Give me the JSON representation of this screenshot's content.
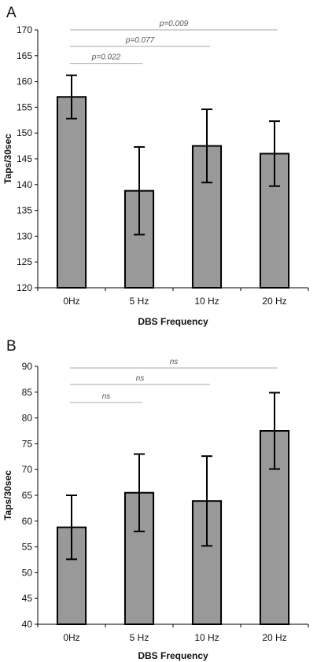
{
  "figure": {
    "background": "#ffffff",
    "bar_color": "#999999",
    "edge_color": "#000000",
    "bracket_color": "#aaaaaa"
  },
  "chart_data": [
    {
      "type": "bar",
      "panel": "A",
      "title": "",
      "xlabel": "DBS Frequency",
      "ylabel": "Taps/30sec",
      "categories": [
        "0Hz",
        "5 Hz",
        "10 Hz",
        "20 Hz"
      ],
      "values": [
        157,
        138.8,
        147.5,
        146
      ],
      "error": [
        4.2,
        8.5,
        7.1,
        6.3
      ],
      "ylim": [
        120,
        170
      ],
      "yticks": [
        "120",
        "125",
        "130",
        "135",
        "140",
        "145",
        "150",
        "155",
        "160",
        "165",
        "170"
      ],
      "grid": false,
      "legend": "none",
      "comparisons": [
        {
          "from": 0,
          "to": 1,
          "label": "p=0.022",
          "y": 163.5
        },
        {
          "from": 0,
          "to": 2,
          "label": "p=0.077",
          "y": 166.8
        },
        {
          "from": 0,
          "to": 3,
          "label": "p=0.009",
          "y": 170
        }
      ]
    },
    {
      "type": "bar",
      "panel": "B",
      "title": "",
      "xlabel": "DBS Frequency",
      "ylabel": "Taps/30sec",
      "categories": [
        "0Hz",
        "5 Hz",
        "10 Hz",
        "20 Hz"
      ],
      "values": [
        58.8,
        65.5,
        63.9,
        77.5
      ],
      "error": [
        6.2,
        7.5,
        8.7,
        7.4
      ],
      "ylim": [
        40,
        90
      ],
      "yticks": [
        "40",
        "45",
        "50",
        "55",
        "60",
        "65",
        "70",
        "75",
        "80",
        "85",
        "90"
      ],
      "grid": false,
      "legend": "none",
      "comparisons": [
        {
          "from": 0,
          "to": 1,
          "label": "ns",
          "y": 83
        },
        {
          "from": 0,
          "to": 2,
          "label": "ns",
          "y": 86.5
        },
        {
          "from": 0,
          "to": 3,
          "label": "ns",
          "y": 89.7
        }
      ]
    }
  ]
}
